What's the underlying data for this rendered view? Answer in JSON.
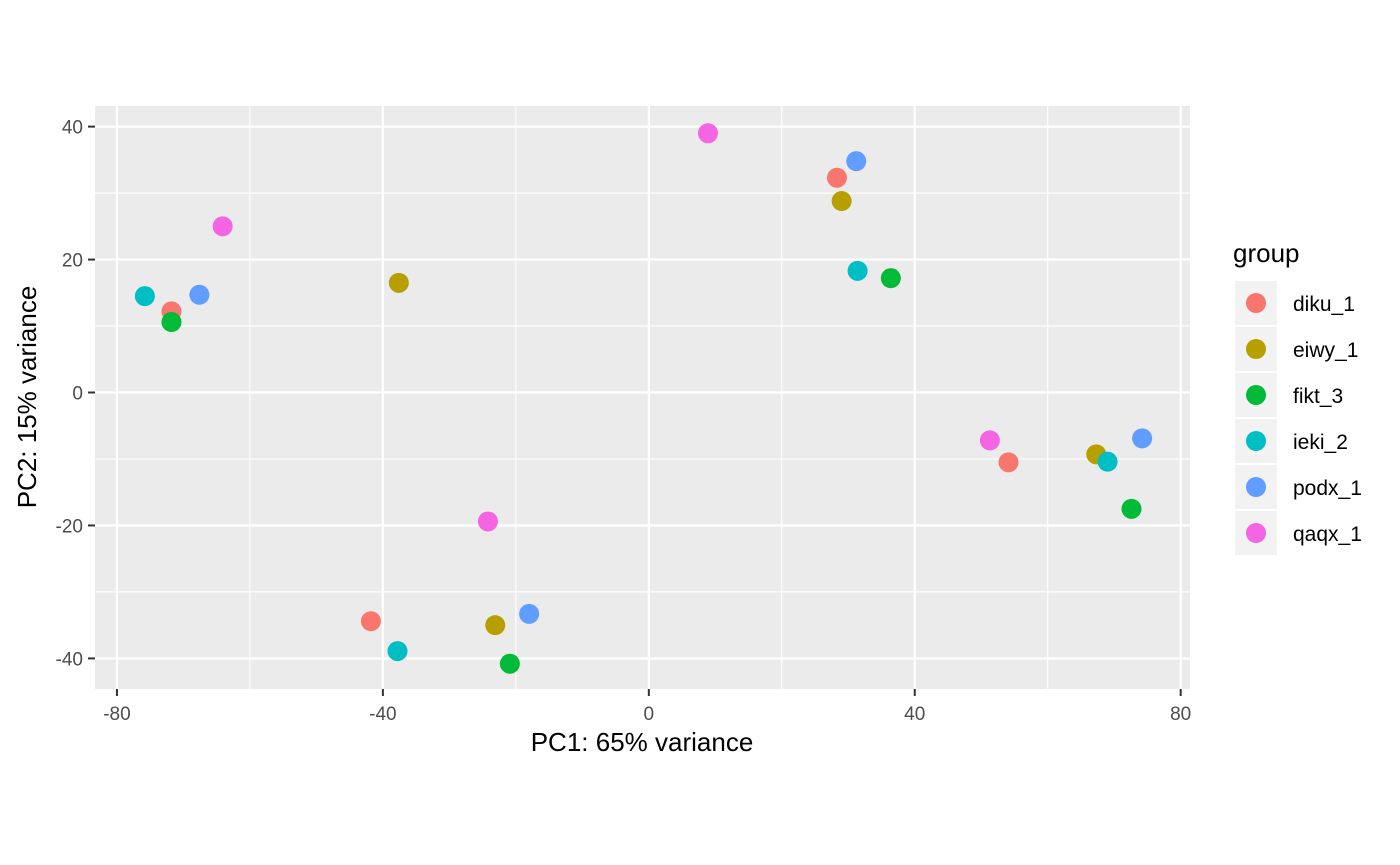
{
  "chart_data": {
    "type": "scatter",
    "title": "",
    "xlabel": "PC1: 65% variance",
    "ylabel": "PC2: 15% variance",
    "xlim": [
      -83.3,
      81.4
    ],
    "ylim": [
      -44.6,
      43.1
    ],
    "x_ticks": [
      -80,
      -40,
      0,
      40,
      80
    ],
    "x_tick_labels": [
      "-80",
      "-40",
      "0",
      "40",
      "80"
    ],
    "y_ticks": [
      -40,
      -20,
      0,
      20,
      40
    ],
    "y_tick_labels": [
      "-40",
      "-20",
      "0",
      "20",
      "40"
    ],
    "grid": true,
    "legend": {
      "title": "group",
      "position": "right"
    },
    "series": [
      {
        "name": "diku_1",
        "color": "#F8766D",
        "points": [
          [
            -71.8,
            12.2
          ],
          [
            -41.8,
            -34.4
          ],
          [
            28.3,
            32.3
          ],
          [
            54.1,
            -10.5
          ]
        ]
      },
      {
        "name": "eiwy_1",
        "color": "#B79F00",
        "points": [
          [
            -37.6,
            16.5
          ],
          [
            -23.1,
            -35.0
          ],
          [
            29.0,
            28.8
          ],
          [
            67.3,
            -9.3
          ]
        ]
      },
      {
        "name": "fikt_3",
        "color": "#00BA38",
        "points": [
          [
            -71.8,
            10.6
          ],
          [
            -20.9,
            -40.8
          ],
          [
            36.4,
            17.2
          ],
          [
            72.6,
            -17.5
          ]
        ]
      },
      {
        "name": "ieki_2",
        "color": "#00BFC4",
        "points": [
          [
            -75.8,
            14.5
          ],
          [
            -37.8,
            -38.9
          ],
          [
            31.4,
            18.3
          ],
          [
            69.0,
            -10.4
          ]
        ]
      },
      {
        "name": "podx_1",
        "color": "#619CFF",
        "points": [
          [
            -67.6,
            14.7
          ],
          [
            -18.0,
            -33.3
          ],
          [
            31.2,
            34.8
          ],
          [
            74.2,
            -6.9
          ]
        ]
      },
      {
        "name": "qaqx_1",
        "color": "#F564E3",
        "points": [
          [
            -64.1,
            25.0
          ],
          [
            -24.2,
            -19.4
          ],
          [
            8.9,
            39.0
          ],
          [
            51.3,
            -7.2
          ]
        ]
      }
    ]
  }
}
